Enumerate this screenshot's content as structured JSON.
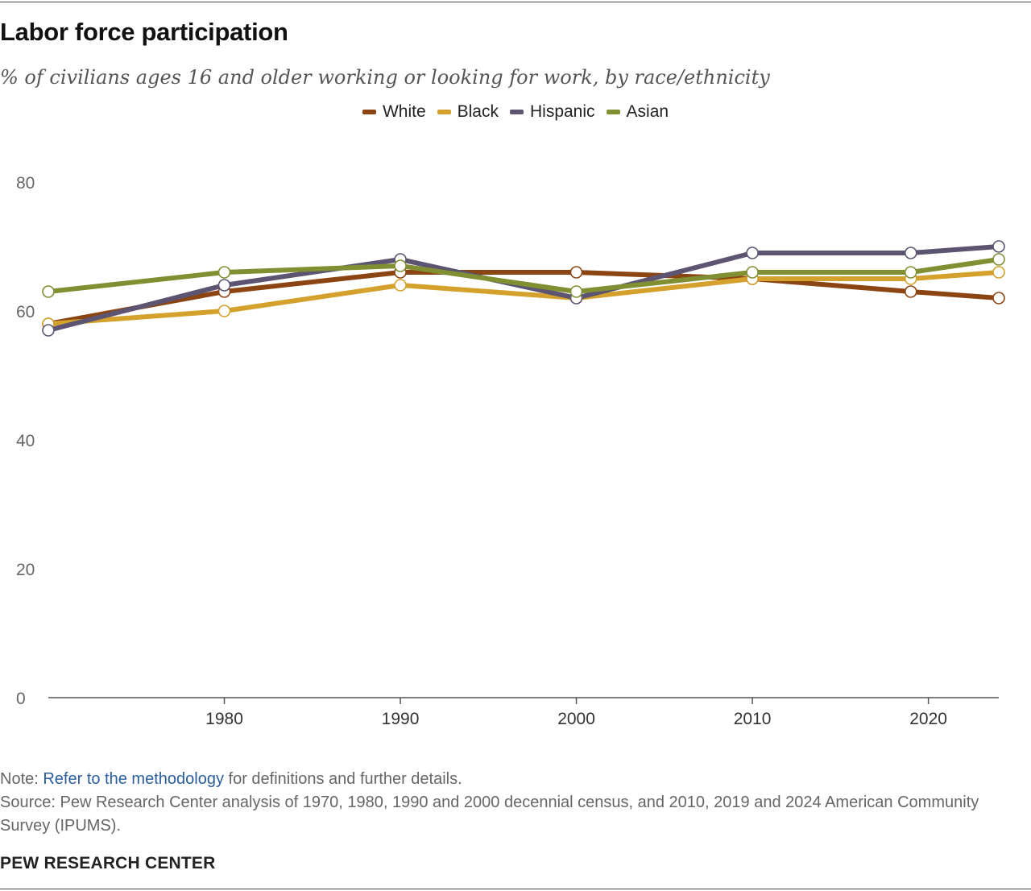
{
  "header": {
    "title": "Labor force participation",
    "subtitle": "% of civilians ages 16 and older working or looking for work, by race/ethnicity"
  },
  "footer": {
    "note_prefix": "Note: ",
    "note_link": "Refer to the methodology",
    "note_suffix": " for definitions and further details.",
    "source": "Source: Pew Research Center analysis of 1970, 1980, 1990 and 2000 decennial census, and 2010, 2019 and 2024 American Community Survey (IPUMS).",
    "brand": "PEW RESEARCH CENTER"
  },
  "colors": {
    "White": "#8b4513",
    "Black": "#d4a12c",
    "Hispanic": "#5c5470",
    "Asian": "#7f8f32",
    "axis": "#555555",
    "tick_text": "#666666"
  },
  "chart_data": {
    "type": "line",
    "title": "Labor force participation",
    "subtitle": "% of civilians ages 16 and older working or looking for work, by race/ethnicity",
    "x": [
      1970,
      1980,
      1990,
      2000,
      2010,
      2019,
      2024
    ],
    "xticks": [
      1980,
      1990,
      2000,
      2010,
      2020
    ],
    "xlim": [
      1970,
      2024
    ],
    "yticks": [
      0,
      20,
      40,
      60,
      80
    ],
    "ylim": [
      0,
      80
    ],
    "grid": false,
    "legend_position": "top-center",
    "series": [
      {
        "name": "White",
        "values": [
          58,
          63,
          66,
          66,
          65,
          63,
          62
        ]
      },
      {
        "name": "Black",
        "values": [
          58,
          60,
          64,
          62,
          65,
          65,
          66
        ]
      },
      {
        "name": "Hispanic",
        "values": [
          57,
          64,
          68,
          62,
          69,
          69,
          70
        ]
      },
      {
        "name": "Asian",
        "values": [
          63,
          66,
          67,
          63,
          66,
          66,
          68
        ]
      }
    ]
  }
}
